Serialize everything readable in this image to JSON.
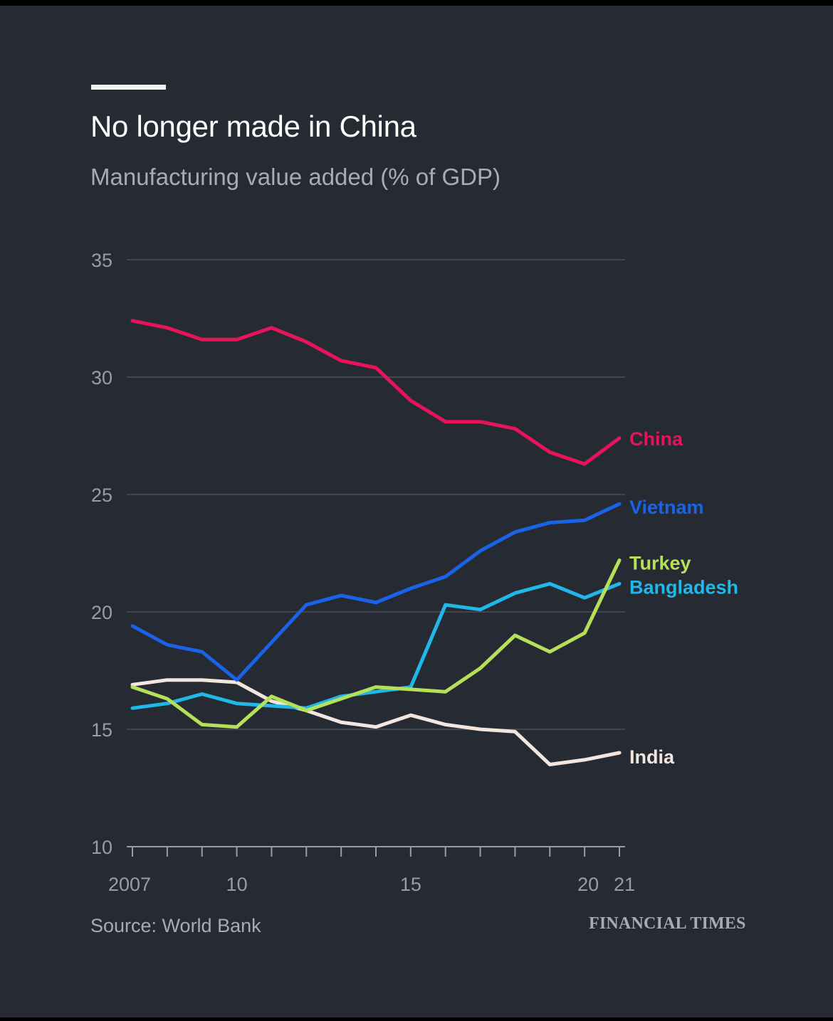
{
  "title": "No longer made in China",
  "subtitle": "Manufacturing value added (% of GDP)",
  "source": "Source: World Bank",
  "publisher": "FINANCIAL TIMES",
  "colors": {
    "background": "#262a33",
    "gridline": "#4a4e57",
    "axis": "#9a9ca3",
    "text_primary": "#ffffff",
    "text_secondary": "#a9abb2"
  },
  "chart_data": {
    "type": "line",
    "title": "No longer made in China",
    "subtitle": "Manufacturing value added (% of GDP)",
    "xlabel": "",
    "ylabel": "",
    "x": [
      2007,
      2008,
      2009,
      2010,
      2011,
      2012,
      2013,
      2014,
      2015,
      2016,
      2017,
      2018,
      2019,
      2020,
      2021
    ],
    "xlim": [
      2007,
      2021
    ],
    "ylim": [
      10,
      35
    ],
    "y_ticks": [
      10,
      15,
      20,
      25,
      30,
      35
    ],
    "y_tick_labels": [
      "10",
      "15",
      "20",
      "25",
      "30",
      "35"
    ],
    "x_ticks": [
      2007,
      2008,
      2009,
      2010,
      2011,
      2012,
      2013,
      2014,
      2015,
      2016,
      2017,
      2018,
      2019,
      2020,
      2021
    ],
    "x_tick_labels": [
      {
        "x": 2007,
        "label": "2007"
      },
      {
        "x": 2010,
        "label": "10"
      },
      {
        "x": 2015,
        "label": "15"
      },
      {
        "x": 2020,
        "label": "20"
      },
      {
        "x": 2021,
        "label": "21"
      }
    ],
    "grid": true,
    "legend": "direct labels at line ends (right)",
    "series": [
      {
        "name": "China",
        "color": "#e8135a",
        "values": [
          32.4,
          32.1,
          31.6,
          31.6,
          32.1,
          31.5,
          30.7,
          30.4,
          29.0,
          28.1,
          28.1,
          27.8,
          26.8,
          26.3,
          27.4
        ]
      },
      {
        "name": "Vietnam",
        "color": "#1a63e8",
        "values": [
          19.4,
          18.6,
          18.3,
          17.1,
          18.7,
          20.3,
          20.7,
          20.4,
          21.0,
          21.5,
          22.6,
          23.4,
          23.8,
          23.9,
          24.6
        ]
      },
      {
        "name": "Turkey",
        "color": "#b5e05a",
        "values": [
          16.8,
          16.3,
          15.2,
          15.1,
          16.4,
          15.8,
          16.3,
          16.8,
          16.7,
          16.6,
          17.6,
          19.0,
          18.3,
          19.1,
          22.2
        ]
      },
      {
        "name": "Bangladesh",
        "color": "#1fb8e8",
        "values": [
          15.9,
          16.1,
          16.5,
          16.1,
          16.0,
          15.9,
          16.4,
          16.6,
          16.8,
          20.3,
          20.1,
          20.8,
          21.2,
          20.6,
          21.2
        ]
      },
      {
        "name": "India",
        "color": "#f3e6df",
        "values": [
          16.9,
          17.1,
          17.1,
          17.0,
          16.2,
          15.8,
          15.3,
          15.1,
          15.6,
          15.2,
          15.0,
          14.9,
          13.5,
          13.7,
          14.0
        ]
      }
    ]
  }
}
